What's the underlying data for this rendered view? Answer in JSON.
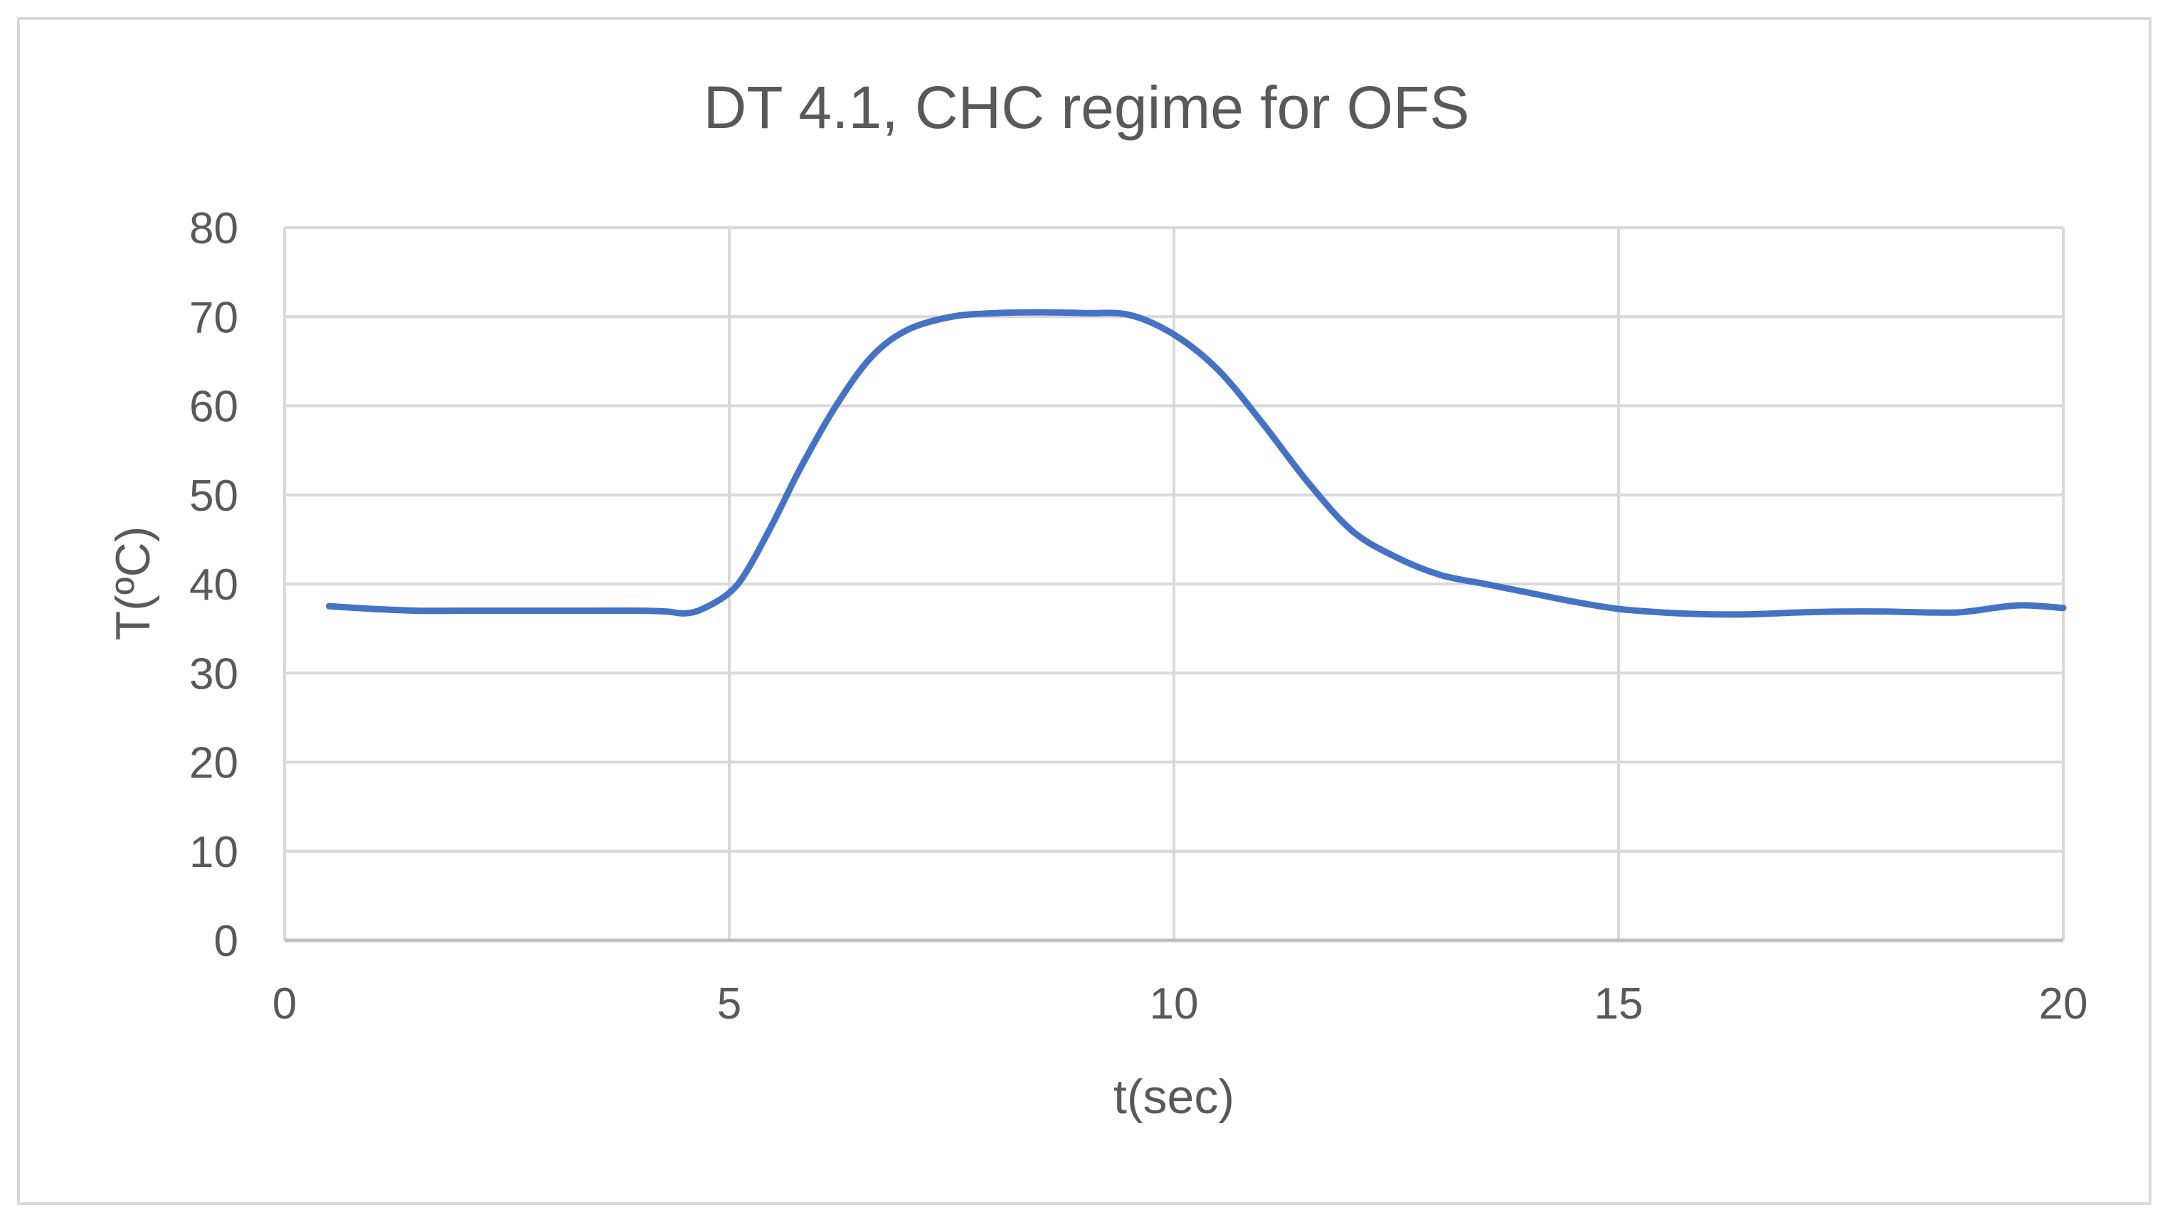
{
  "chart_data": {
    "type": "line",
    "title": "DT 4.1, CHC regime for OFS",
    "xlabel": "t(sec)",
    "ylabel": "T(ºC)",
    "xlim": [
      0,
      20
    ],
    "ylim": [
      0,
      80
    ],
    "x_ticks": [
      "0",
      "5",
      "10",
      "15",
      "20"
    ],
    "y_ticks": [
      "0",
      "10",
      "20",
      "30",
      "40",
      "50",
      "60",
      "70",
      "80"
    ],
    "grid": true,
    "legend": "none",
    "series": [
      {
        "color": "#4472c4",
        "points": [
          [
            0.5,
            37.5
          ],
          [
            1.0,
            37.2
          ],
          [
            1.5,
            37.0
          ],
          [
            2.0,
            37.0
          ],
          [
            2.5,
            37.0
          ],
          [
            3.0,
            37.0
          ],
          [
            3.5,
            37.0
          ],
          [
            4.0,
            37.0
          ],
          [
            4.3,
            36.9
          ],
          [
            4.5,
            36.7
          ],
          [
            4.7,
            37.2
          ],
          [
            5.0,
            39.0
          ],
          [
            5.2,
            41.5
          ],
          [
            5.5,
            47.0
          ],
          [
            5.8,
            53.0
          ],
          [
            6.2,
            60.0
          ],
          [
            6.6,
            65.5
          ],
          [
            7.0,
            68.5
          ],
          [
            7.5,
            70.0
          ],
          [
            8.0,
            70.4
          ],
          [
            8.5,
            70.5
          ],
          [
            9.0,
            70.4
          ],
          [
            9.5,
            70.2
          ],
          [
            10.0,
            68.0
          ],
          [
            10.5,
            64.0
          ],
          [
            11.0,
            58.0
          ],
          [
            11.5,
            51.5
          ],
          [
            12.0,
            46.0
          ],
          [
            12.5,
            43.0
          ],
          [
            13.0,
            41.0
          ],
          [
            13.5,
            40.0
          ],
          [
            14.0,
            39.0
          ],
          [
            14.5,
            38.0
          ],
          [
            15.0,
            37.2
          ],
          [
            15.5,
            36.8
          ],
          [
            16.0,
            36.6
          ],
          [
            16.5,
            36.6
          ],
          [
            17.0,
            36.8
          ],
          [
            17.5,
            36.9
          ],
          [
            18.0,
            36.9
          ],
          [
            18.5,
            36.8
          ],
          [
            18.8,
            36.8
          ],
          [
            19.0,
            37.0
          ],
          [
            19.5,
            37.6
          ],
          [
            20.0,
            37.3
          ]
        ]
      }
    ]
  }
}
